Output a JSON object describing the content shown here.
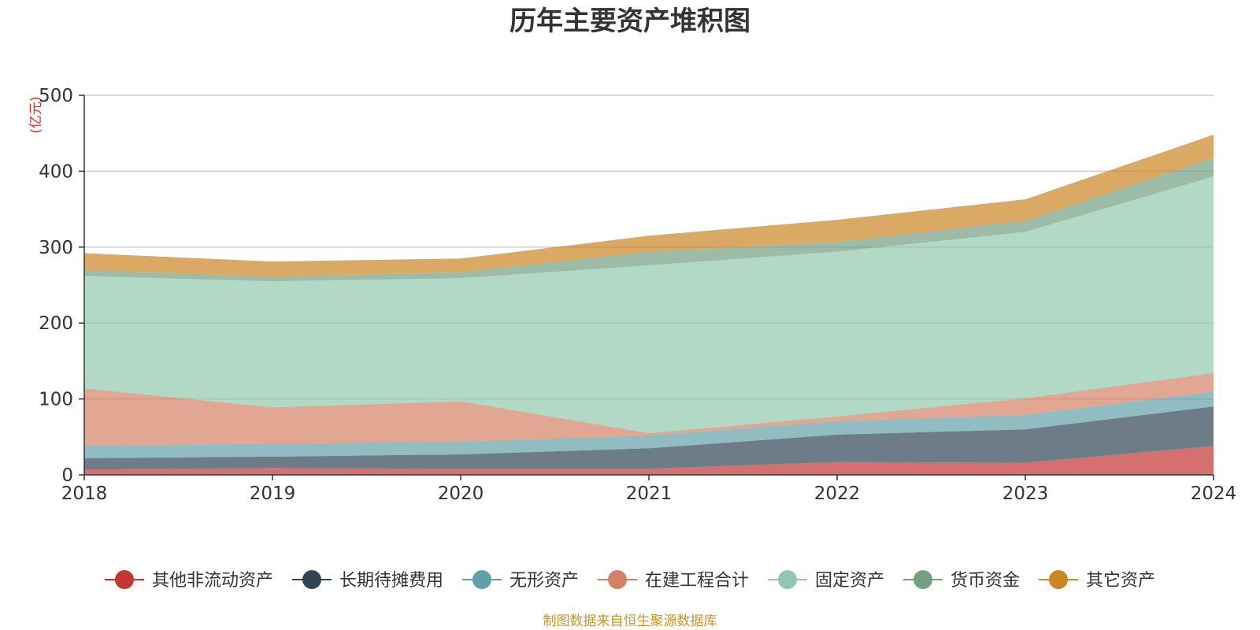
{
  "chart_data": {
    "type": "area",
    "stacked": true,
    "title": "历年主要资产堆积图",
    "ylabel": "(亿元)",
    "xlabel": "",
    "categories": [
      "2018",
      "2019",
      "2020",
      "2021",
      "2022",
      "2023",
      "2024"
    ],
    "ylim": [
      0,
      500
    ],
    "yticks": [
      0,
      100,
      200,
      300,
      400,
      500
    ],
    "grid": true,
    "legend_position": "bottom",
    "series": [
      {
        "name": "其他非流动资产",
        "color": "#c23531",
        "values": [
          7,
          9,
          8,
          8,
          17,
          16,
          38
        ]
      },
      {
        "name": "长期待摊费用",
        "color": "#2f4554",
        "values": [
          15,
          15,
          19,
          27,
          36,
          44,
          52
        ]
      },
      {
        "name": "无形资产",
        "color": "#61a0a8",
        "values": [
          17,
          17,
          17,
          17,
          18,
          19,
          20
        ]
      },
      {
        "name": "在建工程合计",
        "color": "#d48265",
        "values": [
          75,
          48,
          53,
          3,
          6,
          22,
          24
        ]
      },
      {
        "name": "固定资产",
        "color": "#91c7ae",
        "values": [
          148,
          166,
          162,
          221,
          217,
          219,
          259
        ]
      },
      {
        "name": "货币资金",
        "color": "#749f83",
        "values": [
          8,
          6,
          8,
          18,
          13,
          15,
          25
        ]
      },
      {
        "name": "其它资产",
        "color": "#ca8622",
        "values": [
          22,
          20,
          18,
          21,
          29,
          28,
          30
        ]
      }
    ],
    "source": "制图数据来自恒生聚源数据库"
  }
}
